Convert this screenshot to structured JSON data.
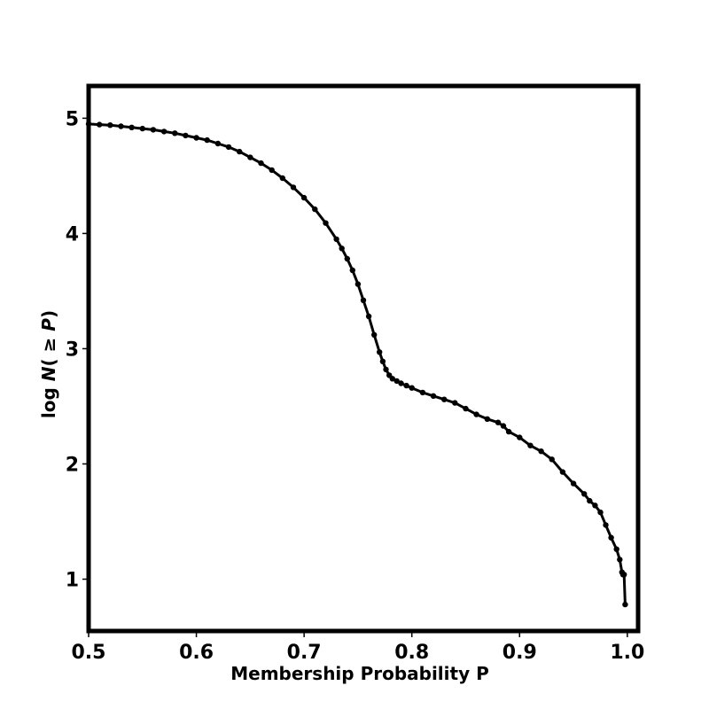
{
  "chart_data": {
    "type": "line",
    "title": "",
    "xlabel": "Membership Probability  P",
    "ylabel": {
      "prefix": "log ",
      "variable": "N",
      "open": "( ≥ ",
      "argument": "P",
      "close": ")"
    },
    "xlim": [
      0.5,
      1.01
    ],
    "ylim": [
      0.55,
      5.28
    ],
    "x_ticks": [
      {
        "value": 0.5,
        "label": "0.5"
      },
      {
        "value": 0.6,
        "label": "0.6"
      },
      {
        "value": 0.7,
        "label": "0.7"
      },
      {
        "value": 0.8,
        "label": "0.8"
      },
      {
        "value": 0.9,
        "label": "0.9"
      },
      {
        "value": 1.0,
        "label": "1.0"
      }
    ],
    "y_ticks": [
      {
        "value": 1,
        "label": "1"
      },
      {
        "value": 2,
        "label": "2"
      },
      {
        "value": 3,
        "label": "3"
      },
      {
        "value": 4,
        "label": "4"
      },
      {
        "value": 5,
        "label": "5"
      }
    ],
    "grid": false,
    "legend": "none",
    "series": [
      {
        "color": "#000000",
        "marker": "dot",
        "x": [
          0.5,
          0.51,
          0.52,
          0.53,
          0.54,
          0.55,
          0.56,
          0.57,
          0.58,
          0.59,
          0.6,
          0.61,
          0.62,
          0.63,
          0.64,
          0.65,
          0.66,
          0.67,
          0.68,
          0.69,
          0.7,
          0.71,
          0.72,
          0.73,
          0.735,
          0.74,
          0.745,
          0.75,
          0.755,
          0.76,
          0.765,
          0.77,
          0.773,
          0.776,
          0.779,
          0.782,
          0.786,
          0.79,
          0.795,
          0.8,
          0.81,
          0.82,
          0.83,
          0.84,
          0.85,
          0.86,
          0.87,
          0.88,
          0.885,
          0.89,
          0.9,
          0.91,
          0.92,
          0.93,
          0.94,
          0.95,
          0.96,
          0.965,
          0.97,
          0.975,
          0.98,
          0.985,
          0.99,
          0.993,
          0.995,
          0.996,
          0.997,
          0.998
        ],
        "y": [
          4.95,
          4.945,
          4.94,
          4.93,
          4.92,
          4.91,
          4.9,
          4.885,
          4.87,
          4.85,
          4.83,
          4.81,
          4.78,
          4.75,
          4.71,
          4.66,
          4.61,
          4.55,
          4.48,
          4.4,
          4.31,
          4.21,
          4.09,
          3.95,
          3.87,
          3.78,
          3.68,
          3.56,
          3.42,
          3.28,
          3.12,
          2.97,
          2.89,
          2.82,
          2.77,
          2.74,
          2.72,
          2.7,
          2.68,
          2.66,
          2.62,
          2.59,
          2.56,
          2.53,
          2.48,
          2.43,
          2.39,
          2.36,
          2.33,
          2.28,
          2.23,
          2.16,
          2.11,
          2.04,
          1.93,
          1.83,
          1.74,
          1.68,
          1.64,
          1.58,
          1.47,
          1.36,
          1.26,
          1.17,
          1.06,
          1.04,
          1.04,
          0.78
        ]
      }
    ]
  }
}
